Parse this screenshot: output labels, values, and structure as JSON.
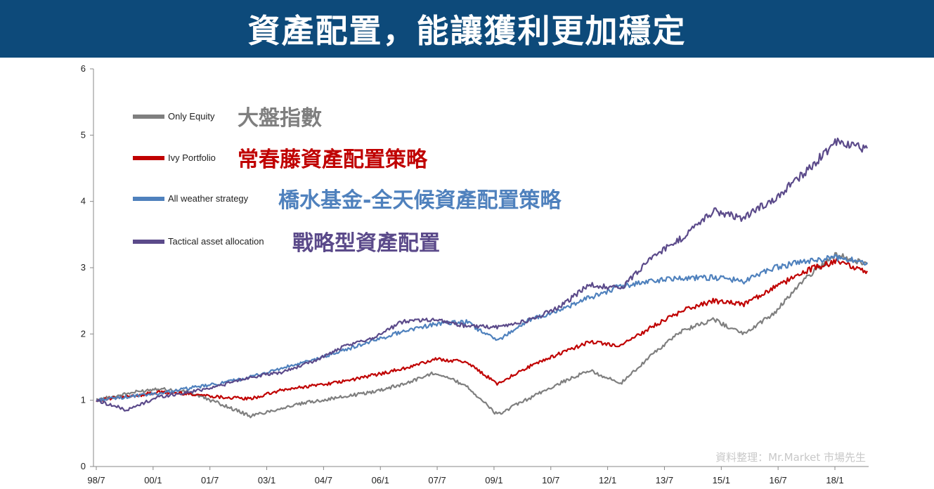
{
  "header": {
    "title": "資產配置，能讓獲利更加穩定"
  },
  "credit": "資料整理：Mr.Market 市場先生",
  "chart_data": {
    "type": "line",
    "x_ticks": [
      "98/7",
      "00/1",
      "01/7",
      "03/1",
      "04/7",
      "06/1",
      "07/7",
      "09/1",
      "10/7",
      "12/1",
      "13/7",
      "15/1",
      "16/7",
      "18/1"
    ],
    "ylim": [
      0,
      6
    ],
    "y_ticks": [
      0,
      1,
      2,
      3,
      4,
      5,
      6
    ],
    "grid": false,
    "legend_position": "top-left",
    "series": [
      {
        "name": "Only Equity",
        "label_zh": "大盤指數",
        "color": "#7f7f7f",
        "label_color": "#7f7f7f",
        "values": [
          1.0,
          1.1,
          1.18,
          1.12,
          0.95,
          0.76,
          0.88,
          0.98,
          1.05,
          1.13,
          1.25,
          1.42,
          1.22,
          0.78,
          1.02,
          1.25,
          1.45,
          1.25,
          1.68,
          2.05,
          2.22,
          2.0,
          2.32,
          2.85,
          3.2,
          3.05
        ]
      },
      {
        "name": "Ivy Portfolio",
        "label_zh": "常春藤資產配置策略",
        "color": "#c00000",
        "label_color": "#c00000",
        "values": [
          1.0,
          1.05,
          1.12,
          1.1,
          1.05,
          1.02,
          1.15,
          1.22,
          1.28,
          1.38,
          1.48,
          1.62,
          1.58,
          1.25,
          1.5,
          1.7,
          1.88,
          1.82,
          2.1,
          2.35,
          2.5,
          2.45,
          2.7,
          2.95,
          3.1,
          2.95
        ]
      },
      {
        "name": "All weather strategy",
        "label_zh": "橋水基金-全天候資產配置策略",
        "color": "#4f81bd",
        "label_color": "#4f81bd",
        "values": [
          1.0,
          1.05,
          1.1,
          1.18,
          1.25,
          1.35,
          1.48,
          1.6,
          1.75,
          1.9,
          2.05,
          2.15,
          2.18,
          1.9,
          2.2,
          2.35,
          2.55,
          2.72,
          2.8,
          2.85,
          2.85,
          2.8,
          3.0,
          3.1,
          3.15,
          3.08
        ]
      },
      {
        "name": "Tactical asset allocation",
        "label_zh": "戰略型資產配置",
        "color": "#5b4a8a",
        "label_color": "#5b4a8a",
        "values": [
          1.0,
          0.85,
          1.05,
          1.12,
          1.22,
          1.35,
          1.42,
          1.58,
          1.8,
          1.95,
          2.2,
          2.22,
          2.12,
          2.1,
          2.2,
          2.4,
          2.75,
          2.68,
          3.15,
          3.45,
          3.85,
          3.75,
          4.05,
          4.45,
          4.9,
          4.8
        ]
      }
    ]
  }
}
